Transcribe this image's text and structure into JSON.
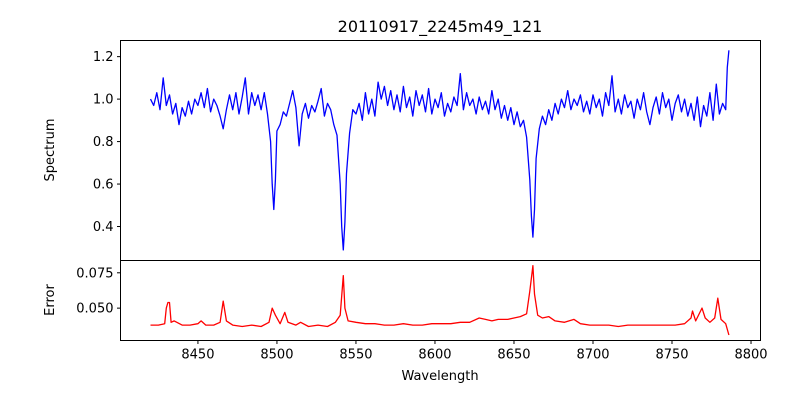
{
  "chart_data": [
    {
      "type": "line",
      "title": "20110917_2245m49_121",
      "xlabel": "",
      "ylabel": "Spectrum",
      "xlim": [
        8401,
        8806
      ],
      "ylim": [
        0.24,
        1.276
      ],
      "yticks": [
        "0.4",
        "0.6",
        "0.8",
        "1.0",
        "1.2"
      ],
      "ytick_values": [
        0.4,
        0.6,
        0.8,
        1.0,
        1.2
      ],
      "grid": false,
      "color": "#0000ff",
      "series": [
        {
          "name": "Spectrum",
          "x": [
            8420,
            8422,
            8424,
            8426,
            8428,
            8430,
            8432,
            8434,
            8436,
            8438,
            8440,
            8442,
            8444,
            8446,
            8448,
            8450,
            8452,
            8454,
            8456,
            8458,
            8460,
            8462,
            8464,
            8466,
            8468,
            8470,
            8472,
            8474,
            8476,
            8478,
            8480,
            8482,
            8484,
            8486,
            8488,
            8490,
            8492,
            8494,
            8496,
            8497,
            8498,
            8499,
            8500,
            8502,
            8504,
            8506,
            8508,
            8510,
            8512,
            8514,
            8516,
            8518,
            8520,
            8522,
            8524,
            8526,
            8528,
            8530,
            8532,
            8534,
            8536,
            8538,
            8540,
            8541,
            8542,
            8543,
            8544,
            8546,
            8548,
            8550,
            8552,
            8554,
            8556,
            8558,
            8560,
            8562,
            8564,
            8566,
            8568,
            8570,
            8572,
            8574,
            8576,
            8578,
            8580,
            8582,
            8584,
            8586,
            8588,
            8590,
            8592,
            8594,
            8596,
            8598,
            8600,
            8602,
            8604,
            8606,
            8608,
            8610,
            8612,
            8614,
            8616,
            8618,
            8620,
            8622,
            8624,
            8626,
            8628,
            8630,
            8632,
            8634,
            8636,
            8638,
            8640,
            8642,
            8644,
            8646,
            8648,
            8650,
            8652,
            8654,
            8656,
            8658,
            8660,
            8661,
            8662,
            8663,
            8664,
            8666,
            8668,
            8670,
            8672,
            8674,
            8676,
            8678,
            8680,
            8682,
            8684,
            8686,
            8688,
            8690,
            8692,
            8694,
            8696,
            8698,
            8700,
            8702,
            8704,
            8706,
            8708,
            8710,
            8712,
            8714,
            8716,
            8718,
            8720,
            8722,
            8724,
            8726,
            8728,
            8730,
            8732,
            8734,
            8736,
            8738,
            8740,
            8742,
            8744,
            8746,
            8748,
            8750,
            8752,
            8754,
            8756,
            8758,
            8760,
            8762,
            8764,
            8766,
            8768,
            8770,
            8772,
            8774,
            8776,
            8778,
            8780,
            8782,
            8784,
            8785,
            8786
          ],
          "y": [
            1.0,
            0.97,
            1.03,
            0.95,
            1.1,
            0.97,
            1.02,
            0.93,
            0.98,
            0.88,
            0.96,
            0.92,
            0.99,
            0.93,
            1.0,
            0.97,
            1.03,
            0.96,
            1.05,
            0.94,
            1.0,
            0.97,
            0.92,
            0.86,
            0.95,
            1.02,
            0.95,
            1.03,
            0.93,
            1.01,
            1.1,
            0.93,
            1.03,
            0.97,
            1.02,
            0.95,
            1.03,
            0.93,
            0.8,
            0.6,
            0.48,
            0.62,
            0.85,
            0.88,
            0.94,
            0.92,
            0.98,
            1.04,
            0.96,
            0.78,
            0.93,
            0.98,
            0.91,
            0.97,
            0.94,
            0.99,
            1.05,
            0.92,
            0.98,
            0.95,
            0.88,
            0.83,
            0.6,
            0.4,
            0.29,
            0.42,
            0.65,
            0.84,
            0.95,
            0.93,
            0.98,
            0.9,
            1.03,
            0.93,
            1.0,
            0.92,
            1.08,
            1.0,
            1.06,
            0.97,
            1.04,
            0.95,
            1.02,
            0.94,
            1.06,
            0.96,
            1.01,
            0.92,
            1.04,
            0.97,
            1.02,
            0.94,
            1.05,
            0.93,
            1.0,
            0.96,
            1.03,
            0.92,
            0.98,
            0.94,
            1.01,
            0.97,
            1.12,
            0.95,
            1.03,
            0.97,
            1.0,
            0.93,
            1.01,
            0.95,
            0.99,
            0.93,
            1.04,
            0.95,
            1.0,
            0.91,
            0.97,
            0.9,
            0.96,
            0.88,
            0.94,
            0.87,
            0.9,
            0.82,
            0.62,
            0.45,
            0.35,
            0.48,
            0.72,
            0.86,
            0.92,
            0.88,
            0.95,
            0.9,
            0.98,
            0.93,
            1.0,
            0.96,
            1.04,
            0.95,
            1.0,
            0.97,
            1.02,
            0.94,
            0.99,
            0.93,
            1.02,
            0.96,
            1.0,
            0.92,
            1.03,
            0.97,
            1.11,
            0.94,
            1.0,
            0.93,
            1.02,
            0.96,
            0.99,
            0.91,
            1.0,
            0.95,
            1.03,
            0.94,
            0.88,
            0.96,
            1.01,
            0.93,
            1.03,
            0.96,
            1.0,
            0.9,
            0.98,
            1.02,
            0.94,
            1.0,
            0.92,
            0.98,
            0.9,
            1.01,
            0.87,
            0.97,
            0.92,
            1.03,
            0.9,
            1.07,
            0.93,
            0.98,
            0.95,
            1.15,
            1.23
          ]
        }
      ]
    },
    {
      "type": "line",
      "title": "",
      "xlabel": "Wavelength",
      "ylabel": "Error",
      "xlim": [
        8401,
        8806
      ],
      "ylim": [
        0.0271,
        0.0837
      ],
      "xticks": [
        "8450",
        "8500",
        "8550",
        "8600",
        "8650",
        "8700",
        "8750",
        "8800"
      ],
      "xtick_values": [
        8450,
        8500,
        8550,
        8600,
        8650,
        8700,
        8750,
        8800
      ],
      "yticks": [
        "0.050",
        "0.075"
      ],
      "ytick_values": [
        0.05,
        0.075
      ],
      "grid": false,
      "color": "#ff0000",
      "series": [
        {
          "name": "Error",
          "x": [
            8420,
            8425,
            8429,
            8430,
            8431,
            8432,
            8433,
            8435,
            8440,
            8445,
            8450,
            8452,
            8455,
            8460,
            8464,
            8466,
            8468,
            8472,
            8478,
            8484,
            8490,
            8495,
            8497,
            8499,
            8502,
            8505,
            8507,
            8512,
            8515,
            8520,
            8526,
            8532,
            8537,
            8540,
            8542,
            8543,
            8545,
            8550,
            8556,
            8562,
            8568,
            8574,
            8580,
            8586,
            8592,
            8598,
            8604,
            8610,
            8616,
            8622,
            8628,
            8632,
            8636,
            8640,
            8646,
            8650,
            8654,
            8658,
            8660,
            8662,
            8663,
            8665,
            8668,
            8672,
            8676,
            8682,
            8688,
            8692,
            8698,
            8704,
            8710,
            8716,
            8722,
            8728,
            8734,
            8740,
            8746,
            8752,
            8758,
            8762,
            8763,
            8765,
            8769,
            8771,
            8774,
            8777,
            8779,
            8781,
            8784,
            8786
          ],
          "y": [
            0.038,
            0.038,
            0.039,
            0.05,
            0.054,
            0.054,
            0.04,
            0.041,
            0.038,
            0.038,
            0.039,
            0.041,
            0.038,
            0.038,
            0.04,
            0.055,
            0.041,
            0.038,
            0.037,
            0.038,
            0.037,
            0.04,
            0.05,
            0.045,
            0.039,
            0.047,
            0.04,
            0.038,
            0.04,
            0.037,
            0.038,
            0.037,
            0.04,
            0.045,
            0.073,
            0.05,
            0.041,
            0.04,
            0.039,
            0.039,
            0.038,
            0.038,
            0.039,
            0.038,
            0.038,
            0.039,
            0.039,
            0.039,
            0.04,
            0.04,
            0.043,
            0.042,
            0.041,
            0.042,
            0.042,
            0.043,
            0.044,
            0.046,
            0.062,
            0.08,
            0.06,
            0.045,
            0.043,
            0.044,
            0.041,
            0.04,
            0.042,
            0.039,
            0.038,
            0.038,
            0.038,
            0.037,
            0.038,
            0.038,
            0.038,
            0.038,
            0.038,
            0.038,
            0.039,
            0.043,
            0.048,
            0.041,
            0.05,
            0.043,
            0.04,
            0.043,
            0.057,
            0.042,
            0.039,
            0.031
          ]
        }
      ]
    }
  ]
}
